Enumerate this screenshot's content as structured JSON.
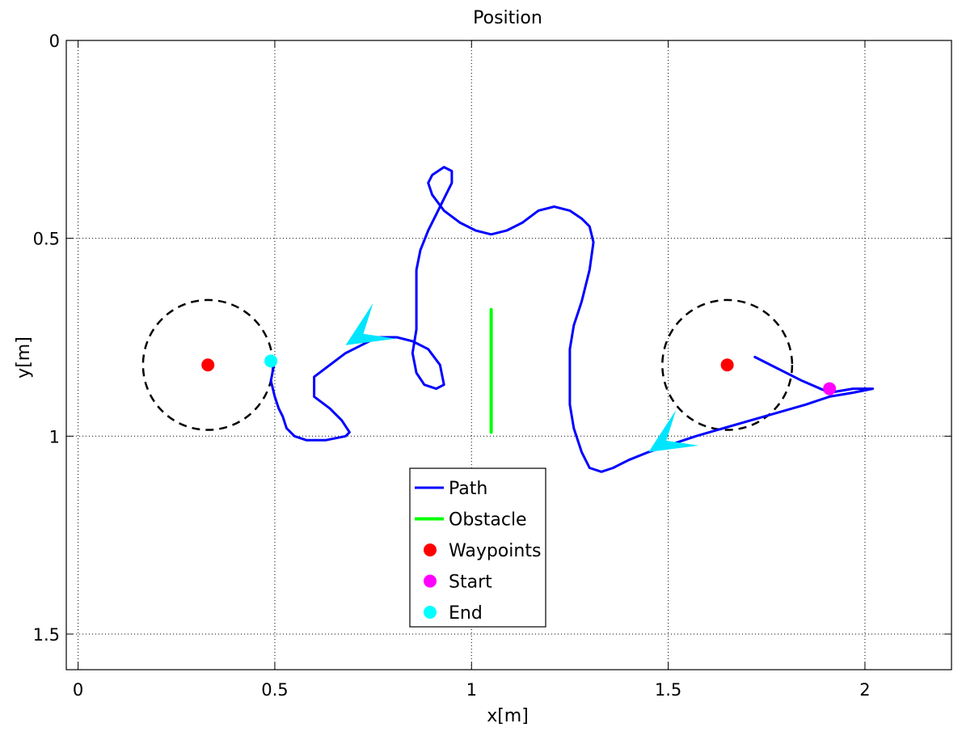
{
  "chart_data": {
    "type": "scatter",
    "title": "Position",
    "xlabel": "x[m]",
    "ylabel": "y[m]",
    "xlim": [
      -0.03,
      2.22
    ],
    "ylim": [
      0,
      1.59
    ],
    "y_reversed": true,
    "grid": true,
    "x_ticks": [
      0,
      0.5,
      1,
      1.5,
      2
    ],
    "x_tick_labels": [
      "0",
      "0.5",
      "1",
      "1.5",
      "2"
    ],
    "y_ticks": [
      0,
      0.5,
      1,
      1.5
    ],
    "y_tick_labels": [
      "0",
      "0.5",
      "1",
      "1.5"
    ],
    "series": [
      {
        "name": "Path",
        "kind": "line",
        "color": "#0000ff",
        "points": [
          [
            1.72,
            0.8
          ],
          [
            1.78,
            0.83
          ],
          [
            1.84,
            0.86
          ],
          [
            1.91,
            0.89
          ],
          [
            1.97,
            0.88
          ],
          [
            2.02,
            0.88
          ],
          [
            1.97,
            0.89
          ],
          [
            1.91,
            0.9
          ],
          [
            1.85,
            0.92
          ],
          [
            1.78,
            0.94
          ],
          [
            1.71,
            0.96
          ],
          [
            1.64,
            0.98
          ],
          [
            1.57,
            1.0
          ],
          [
            1.51,
            1.02
          ],
          [
            1.45,
            1.04
          ],
          [
            1.4,
            1.06
          ],
          [
            1.36,
            1.08
          ],
          [
            1.33,
            1.09
          ],
          [
            1.3,
            1.08
          ],
          [
            1.28,
            1.04
          ],
          [
            1.26,
            0.98
          ],
          [
            1.25,
            0.92
          ],
          [
            1.25,
            0.85
          ],
          [
            1.25,
            0.78
          ],
          [
            1.26,
            0.72
          ],
          [
            1.28,
            0.66
          ],
          [
            1.3,
            0.58
          ],
          [
            1.31,
            0.51
          ],
          [
            1.3,
            0.47
          ],
          [
            1.28,
            0.45
          ],
          [
            1.25,
            0.43
          ],
          [
            1.21,
            0.42
          ],
          [
            1.17,
            0.43
          ],
          [
            1.13,
            0.46
          ],
          [
            1.09,
            0.48
          ],
          [
            1.05,
            0.49
          ],
          [
            1.01,
            0.48
          ],
          [
            0.97,
            0.46
          ],
          [
            0.93,
            0.43
          ],
          [
            0.9,
            0.39
          ],
          [
            0.89,
            0.36
          ],
          [
            0.9,
            0.34
          ],
          [
            0.93,
            0.32
          ],
          [
            0.95,
            0.33
          ],
          [
            0.95,
            0.36
          ],
          [
            0.93,
            0.4
          ],
          [
            0.91,
            0.44
          ],
          [
            0.89,
            0.48
          ],
          [
            0.87,
            0.53
          ],
          [
            0.86,
            0.58
          ],
          [
            0.86,
            0.63
          ],
          [
            0.86,
            0.68
          ],
          [
            0.86,
            0.73
          ],
          [
            0.85,
            0.79
          ],
          [
            0.86,
            0.84
          ],
          [
            0.88,
            0.87
          ],
          [
            0.91,
            0.88
          ],
          [
            0.93,
            0.87
          ],
          [
            0.92,
            0.82
          ],
          [
            0.89,
            0.78
          ],
          [
            0.85,
            0.76
          ],
          [
            0.81,
            0.75
          ],
          [
            0.76,
            0.75
          ],
          [
            0.72,
            0.77
          ],
          [
            0.68,
            0.79
          ],
          [
            0.64,
            0.82
          ],
          [
            0.6,
            0.85
          ],
          [
            0.6,
            0.9
          ],
          [
            0.64,
            0.93
          ],
          [
            0.67,
            0.96
          ],
          [
            0.69,
            0.99
          ],
          [
            0.68,
            1.0
          ],
          [
            0.63,
            1.01
          ],
          [
            0.58,
            1.01
          ],
          [
            0.55,
            1.0
          ],
          [
            0.53,
            0.98
          ],
          [
            0.52,
            0.95
          ],
          [
            0.51,
            0.93
          ],
          [
            0.5,
            0.9
          ],
          [
            0.49,
            0.86
          ],
          [
            0.5,
            0.81
          ]
        ]
      },
      {
        "name": "Obstacle",
        "kind": "line",
        "color": "#00ff00",
        "points": [
          [
            1.05,
            0.68
          ],
          [
            1.05,
            0.99
          ]
        ]
      },
      {
        "name": "Waypoints",
        "kind": "marker",
        "color": "#ff0000",
        "points": [
          [
            0.33,
            0.82
          ],
          [
            1.65,
            0.82
          ]
        ]
      },
      {
        "name": "Start",
        "kind": "marker",
        "color": "#ff00ff",
        "points": [
          [
            1.91,
            0.88
          ]
        ]
      },
      {
        "name": "End",
        "kind": "marker",
        "color": "#00ffff",
        "points": [
          [
            0.49,
            0.81
          ]
        ]
      }
    ],
    "circles": [
      {
        "center": [
          0.33,
          0.82
        ],
        "radius": 0.165,
        "style": "dashed",
        "color": "#000000"
      },
      {
        "center": [
          1.65,
          0.82
        ],
        "radius": 0.165,
        "style": "dashed",
        "color": "#000000"
      }
    ],
    "arrows": [
      {
        "tip": [
          0.68,
          0.77
        ],
        "direction": "left",
        "color": "#00e5ff"
      },
      {
        "tip": [
          1.45,
          1.04
        ],
        "direction": "left",
        "color": "#00e5ff"
      }
    ],
    "legend": {
      "position": "bottom-center",
      "entries": [
        "Path",
        "Obstacle",
        "Waypoints",
        "Start",
        "End"
      ]
    }
  }
}
